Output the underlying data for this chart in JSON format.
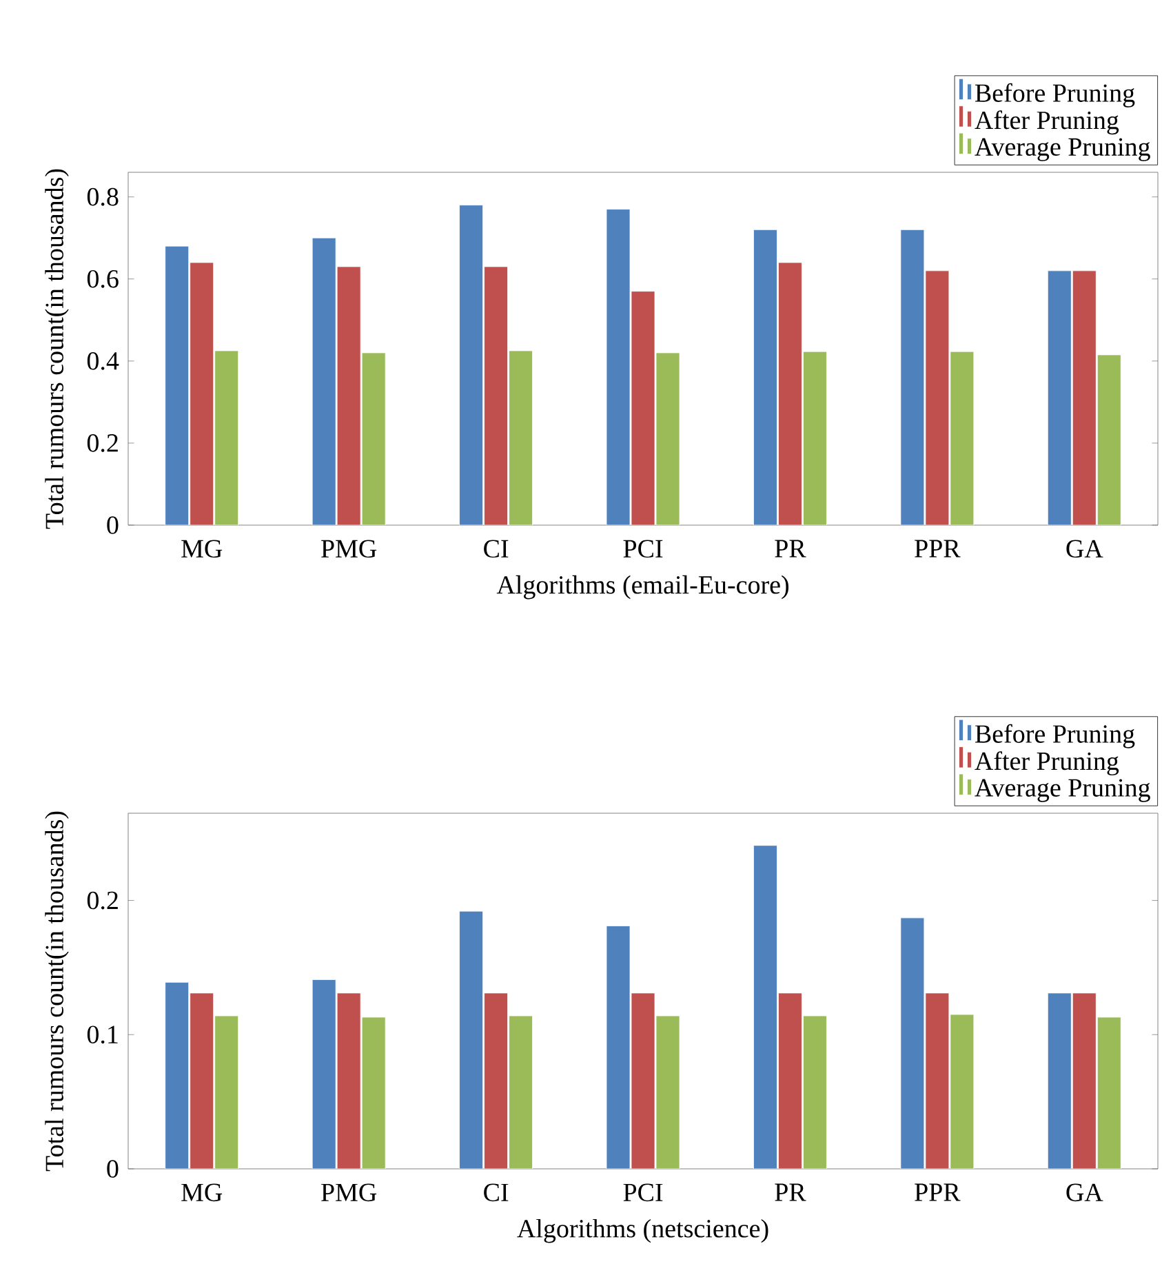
{
  "chart_data": [
    {
      "type": "bar",
      "xlabel": "Algorithms (email-Eu-core)",
      "ylabel": "Total rumours count(in thousands)",
      "categories": [
        "MG",
        "PMG",
        "CI",
        "PCI",
        "PR",
        "PPR",
        "GA"
      ],
      "ylim": [
        0,
        0.86
      ],
      "yticks": [
        0,
        0.2,
        0.4,
        0.6,
        0.8
      ],
      "legend": "top right",
      "series": [
        {
          "name": "Before Pruning",
          "color": "#4f81bd",
          "values": [
            0.68,
            0.7,
            0.78,
            0.77,
            0.72,
            0.72,
            0.62
          ]
        },
        {
          "name": "After Pruning",
          "color": "#c0504d",
          "values": [
            0.64,
            0.63,
            0.63,
            0.57,
            0.64,
            0.62,
            0.62
          ]
        },
        {
          "name": "Average Pruning",
          "color": "#9bbb59",
          "values": [
            0.425,
            0.42,
            0.425,
            0.42,
            0.423,
            0.423,
            0.415
          ]
        }
      ]
    },
    {
      "type": "bar",
      "xlabel": "Algorithms (netscience)",
      "ylabel": "Total rumours count(in thousands)",
      "categories": [
        "MG",
        "PMG",
        "CI",
        "PCI",
        "PR",
        "PPR",
        "GA"
      ],
      "ylim": [
        0,
        0.265
      ],
      "yticks": [
        0,
        0.1,
        0.2
      ],
      "legend": "top right",
      "series": [
        {
          "name": "Before Pruning",
          "color": "#4f81bd",
          "values": [
            0.139,
            0.141,
            0.192,
            0.181,
            0.241,
            0.187,
            0.131
          ]
        },
        {
          "name": "After Pruning",
          "color": "#c0504d",
          "values": [
            0.131,
            0.131,
            0.131,
            0.131,
            0.131,
            0.131,
            0.131
          ]
        },
        {
          "name": "Average Pruning",
          "color": "#9bbb59",
          "values": [
            0.114,
            0.113,
            0.114,
            0.114,
            0.114,
            0.115,
            0.113
          ]
        }
      ]
    }
  ]
}
